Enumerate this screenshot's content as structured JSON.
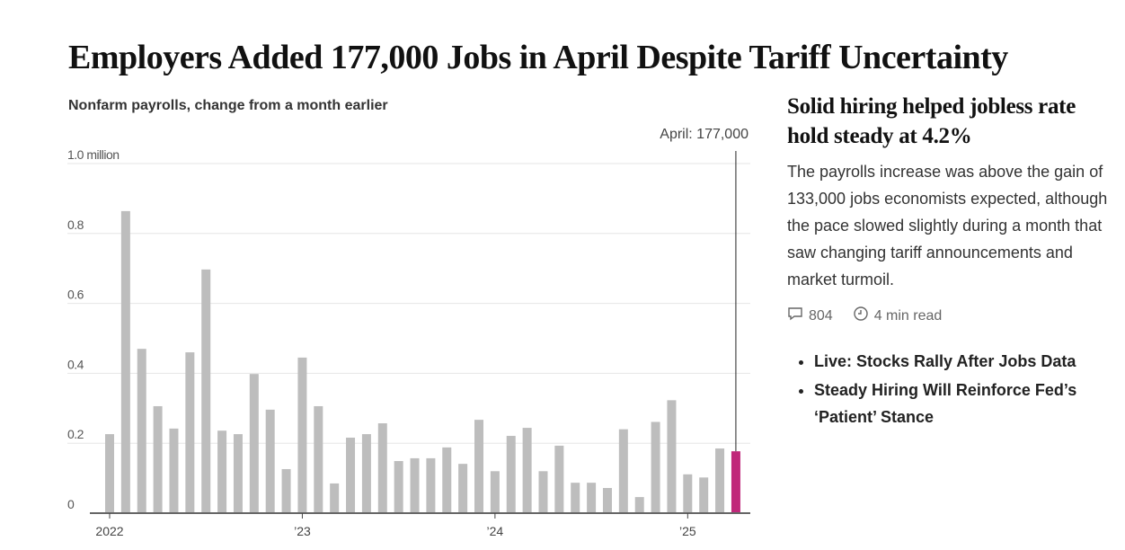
{
  "title": "Employers Added 177,000 Jobs in April Despite Tariff Uncertainty",
  "chart_data": {
    "type": "bar",
    "title": "Nonfarm payrolls, change from a month earlier",
    "xlabel": "",
    "ylabel": "",
    "ylim": [
      0,
      1.0
    ],
    "y_ticks": [
      0,
      0.2,
      0.4,
      0.6,
      0.8,
      1.0
    ],
    "y_tick_labels": [
      "0",
      "0.2",
      "0.4",
      "0.6",
      "0.8",
      "1.0 million"
    ],
    "x_tick_labels": [
      {
        "label": "2022",
        "index": 0
      },
      {
        "label": "’23",
        "index": 12
      },
      {
        "label": "’24",
        "index": 24
      },
      {
        "label": "’25",
        "index": 36
      }
    ],
    "grid": true,
    "start": "2022-01",
    "values": [
      0.226,
      0.864,
      0.47,
      0.306,
      0.242,
      0.46,
      0.697,
      0.236,
      0.226,
      0.398,
      0.296,
      0.126,
      0.445,
      0.306,
      0.085,
      0.216,
      0.226,
      0.257,
      0.149,
      0.157,
      0.157,
      0.188,
      0.141,
      0.267,
      0.12,
      0.221,
      0.244,
      0.12,
      0.193,
      0.087,
      0.087,
      0.072,
      0.24,
      0.046,
      0.261,
      0.323,
      0.111,
      0.102,
      0.185,
      0.177
    ],
    "highlight_index": 39,
    "annotation": "April: 177,000",
    "colors": {
      "bar": "#bdbdbd",
      "highlight": "#c0287a"
    }
  },
  "side": {
    "headline": "Solid hiring helped jobless rate hold steady at 4.2%",
    "body": "The payrolls increase was above the gain of 133,000 jobs economists expected, although the pace slowed slightly during a month that saw changing tariff announcements and market turmoil.",
    "comments": "804",
    "read_time": "4 min read",
    "links": [
      "Live: Stocks Rally After Jobs Data",
      "Steady Hiring Will Reinforce Fed’s ‘Patient’ Stance"
    ]
  }
}
